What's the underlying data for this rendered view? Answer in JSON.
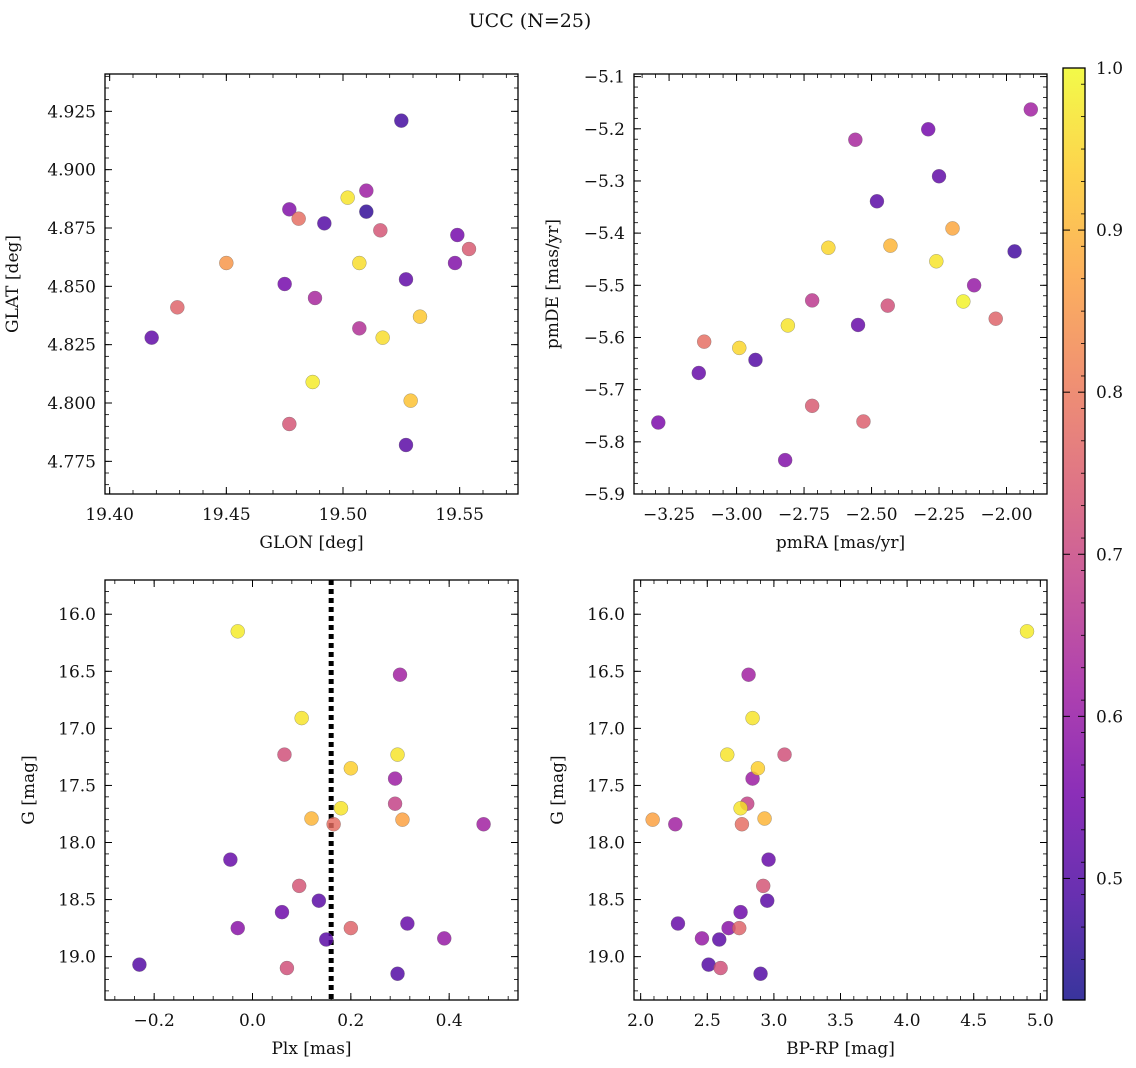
{
  "title": "UCC (N=25)",
  "colorbar": {
    "min": 0.425,
    "max": 1.0,
    "ticks": [
      0.5,
      0.6,
      0.7,
      0.8,
      0.9,
      1.0
    ],
    "tick_labels": [
      "0.5",
      "0.6",
      "0.7",
      "0.8",
      "0.9",
      "1.0"
    ],
    "colormap": [
      "#0d0887",
      "#46039f",
      "#7201a8",
      "#9c179e",
      "#bd3786",
      "#d8576b",
      "#ed7953",
      "#fb9f3a",
      "#fdca26",
      "#f0f921"
    ],
    "marker_opacity": 0.82
  },
  "chart_data": [
    {
      "type": "scatter",
      "name": "position",
      "xlabel": "GLON [deg]",
      "ylabel": "GLAT [deg]",
      "xlim": [
        19.398,
        19.575
      ],
      "ylim": [
        4.761,
        4.941
      ],
      "xticks": [
        19.4,
        19.45,
        19.5,
        19.55
      ],
      "xtick_labels": [
        "19.40",
        "19.45",
        "19.50",
        "19.55"
      ],
      "yticks": [
        4.775,
        4.8,
        4.825,
        4.85,
        4.875,
        4.9,
        4.925
      ],
      "ytick_labels": [
        "4.775",
        "4.800",
        "4.825",
        "4.850",
        "4.875",
        "4.900",
        "4.925"
      ],
      "points": [
        {
          "x": 19.525,
          "y": 4.921,
          "p": 0.48
        },
        {
          "x": 19.502,
          "y": 4.888,
          "p": 0.97
        },
        {
          "x": 19.51,
          "y": 4.891,
          "p": 0.61
        },
        {
          "x": 19.477,
          "y": 4.883,
          "p": 0.57
        },
        {
          "x": 19.51,
          "y": 4.882,
          "p": 0.46
        },
        {
          "x": 19.481,
          "y": 4.879,
          "p": 0.78
        },
        {
          "x": 19.492,
          "y": 4.877,
          "p": 0.5
        },
        {
          "x": 19.516,
          "y": 4.874,
          "p": 0.73
        },
        {
          "x": 19.549,
          "y": 4.872,
          "p": 0.55
        },
        {
          "x": 19.554,
          "y": 4.866,
          "p": 0.74
        },
        {
          "x": 19.45,
          "y": 4.86,
          "p": 0.85
        },
        {
          "x": 19.507,
          "y": 4.86,
          "p": 0.96
        },
        {
          "x": 19.548,
          "y": 4.86,
          "p": 0.57
        },
        {
          "x": 19.527,
          "y": 4.853,
          "p": 0.52
        },
        {
          "x": 19.475,
          "y": 4.851,
          "p": 0.55
        },
        {
          "x": 19.488,
          "y": 4.845,
          "p": 0.63
        },
        {
          "x": 19.429,
          "y": 4.841,
          "p": 0.76
        },
        {
          "x": 19.533,
          "y": 4.837,
          "p": 0.93
        },
        {
          "x": 19.507,
          "y": 4.832,
          "p": 0.65
        },
        {
          "x": 19.517,
          "y": 4.828,
          "p": 0.96
        },
        {
          "x": 19.418,
          "y": 4.828,
          "p": 0.52
        },
        {
          "x": 19.487,
          "y": 4.809,
          "p": 0.98
        },
        {
          "x": 19.529,
          "y": 4.801,
          "p": 0.92
        },
        {
          "x": 19.477,
          "y": 4.791,
          "p": 0.73
        },
        {
          "x": 19.527,
          "y": 4.782,
          "p": 0.51
        }
      ]
    },
    {
      "type": "scatter",
      "name": "proper-motion",
      "xlabel": "pmRA [mas/yr]",
      "ylabel": "pmDE [mas/yr]",
      "xlim": [
        -3.38,
        -1.85
      ],
      "ylim": [
        -5.9,
        -5.095
      ],
      "xticks": [
        -3.25,
        -3.0,
        -2.75,
        -2.5,
        -2.25,
        -2.0
      ],
      "xtick_labels": [
        "−3.25",
        "−3.00",
        "−2.75",
        "−2.50",
        "−2.25",
        "−2.00"
      ],
      "yticks": [
        -5.9,
        -5.8,
        -5.7,
        -5.6,
        -5.5,
        -5.4,
        -5.3,
        -5.2,
        -5.1
      ],
      "ytick_labels": [
        "−5.9",
        "−5.8",
        "−5.7",
        "−5.6",
        "−5.5",
        "−5.4",
        "−5.3",
        "−5.2",
        "−5.1"
      ],
      "points": [
        {
          "x": -1.91,
          "y": -5.163,
          "p": 0.62
        },
        {
          "x": -2.29,
          "y": -5.201,
          "p": 0.55
        },
        {
          "x": -2.56,
          "y": -5.221,
          "p": 0.63
        },
        {
          "x": -2.25,
          "y": -5.291,
          "p": 0.52
        },
        {
          "x": -2.48,
          "y": -5.339,
          "p": 0.51
        },
        {
          "x": -2.2,
          "y": -5.391,
          "p": 0.88
        },
        {
          "x": -2.43,
          "y": -5.424,
          "p": 0.9
        },
        {
          "x": -2.66,
          "y": -5.428,
          "p": 0.95
        },
        {
          "x": -1.97,
          "y": -5.435,
          "p": 0.48
        },
        {
          "x": -2.26,
          "y": -5.454,
          "p": 0.97
        },
        {
          "x": -2.12,
          "y": -5.5,
          "p": 0.6
        },
        {
          "x": -2.72,
          "y": -5.529,
          "p": 0.67
        },
        {
          "x": -2.16,
          "y": -5.531,
          "p": 0.99
        },
        {
          "x": -2.44,
          "y": -5.539,
          "p": 0.72
        },
        {
          "x": -2.04,
          "y": -5.564,
          "p": 0.76
        },
        {
          "x": -2.81,
          "y": -5.577,
          "p": 0.97
        },
        {
          "x": -2.55,
          "y": -5.576,
          "p": 0.53
        },
        {
          "x": -3.12,
          "y": -5.608,
          "p": 0.78
        },
        {
          "x": -2.99,
          "y": -5.62,
          "p": 0.95
        },
        {
          "x": -2.93,
          "y": -5.643,
          "p": 0.5
        },
        {
          "x": -3.14,
          "y": -5.668,
          "p": 0.53
        },
        {
          "x": -2.72,
          "y": -5.731,
          "p": 0.74
        },
        {
          "x": -2.53,
          "y": -5.761,
          "p": 0.75
        },
        {
          "x": -3.29,
          "y": -5.763,
          "p": 0.56
        },
        {
          "x": -2.82,
          "y": -5.835,
          "p": 0.57
        }
      ]
    },
    {
      "type": "scatter",
      "name": "parallax-magnitude",
      "xlabel": "Plx [mas]",
      "ylabel": "G [mag]",
      "xlim": [
        -0.3,
        0.54
      ],
      "ylim": [
        19.38,
        15.7
      ],
      "invert_y": true,
      "vline": {
        "x": 0.16,
        "style": "dotted",
        "color": "#000000"
      },
      "xticks": [
        -0.2,
        0.0,
        0.2,
        0.4
      ],
      "xtick_labels": [
        "−0.2",
        "0.0",
        "0.2",
        "0.4"
      ],
      "yticks": [
        16.0,
        16.5,
        17.0,
        17.5,
        18.0,
        18.5,
        19.0
      ],
      "ytick_labels": [
        "16.0",
        "16.5",
        "17.0",
        "17.5",
        "18.0",
        "18.5",
        "19.0"
      ],
      "points": [
        {
          "x": -0.03,
          "y": 16.15,
          "p": 0.98
        },
        {
          "x": 0.3,
          "y": 16.53,
          "p": 0.62
        },
        {
          "x": 0.1,
          "y": 16.91,
          "p": 0.97
        },
        {
          "x": 0.065,
          "y": 17.23,
          "p": 0.72
        },
        {
          "x": 0.295,
          "y": 17.23,
          "p": 0.97
        },
        {
          "x": 0.2,
          "y": 17.35,
          "p": 0.94
        },
        {
          "x": 0.29,
          "y": 17.44,
          "p": 0.61
        },
        {
          "x": 0.29,
          "y": 17.66,
          "p": 0.69
        },
        {
          "x": 0.18,
          "y": 17.7,
          "p": 0.97
        },
        {
          "x": 0.12,
          "y": 17.79,
          "p": 0.9
        },
        {
          "x": 0.305,
          "y": 17.8,
          "p": 0.87
        },
        {
          "x": 0.165,
          "y": 17.84,
          "p": 0.78
        },
        {
          "x": 0.47,
          "y": 17.84,
          "p": 0.62
        },
        {
          "x": -0.045,
          "y": 18.15,
          "p": 0.53
        },
        {
          "x": 0.095,
          "y": 18.38,
          "p": 0.73
        },
        {
          "x": 0.135,
          "y": 18.51,
          "p": 0.51
        },
        {
          "x": 0.06,
          "y": 18.61,
          "p": 0.54
        },
        {
          "x": 0.315,
          "y": 18.71,
          "p": 0.53
        },
        {
          "x": -0.03,
          "y": 18.75,
          "p": 0.58
        },
        {
          "x": 0.2,
          "y": 18.75,
          "p": 0.76
        },
        {
          "x": 0.15,
          "y": 18.85,
          "p": 0.51
        },
        {
          "x": 0.39,
          "y": 18.84,
          "p": 0.6
        },
        {
          "x": -0.23,
          "y": 19.07,
          "p": 0.5
        },
        {
          "x": 0.07,
          "y": 19.1,
          "p": 0.72
        },
        {
          "x": 0.295,
          "y": 19.15,
          "p": 0.5
        }
      ]
    },
    {
      "type": "scatter",
      "name": "color-magnitude",
      "xlabel": "BP-RP [mag]",
      "ylabel": "G [mag]",
      "xlim": [
        1.95,
        5.05
      ],
      "ylim": [
        19.38,
        15.7
      ],
      "invert_y": true,
      "xticks": [
        2.0,
        2.5,
        3.0,
        3.5,
        4.0,
        4.5,
        5.0
      ],
      "xtick_labels": [
        "2.0",
        "2.5",
        "3.0",
        "3.5",
        "4.0",
        "4.5",
        "5.0"
      ],
      "yticks": [
        16.0,
        16.5,
        17.0,
        17.5,
        18.0,
        18.5,
        19.0
      ],
      "ytick_labels": [
        "16.0",
        "16.5",
        "17.0",
        "17.5",
        "18.0",
        "18.5",
        "19.0"
      ],
      "points": [
        {
          "x": 4.9,
          "y": 16.15,
          "p": 0.98
        },
        {
          "x": 2.81,
          "y": 16.53,
          "p": 0.62
        },
        {
          "x": 2.84,
          "y": 16.91,
          "p": 0.97
        },
        {
          "x": 2.65,
          "y": 17.23,
          "p": 0.97
        },
        {
          "x": 3.08,
          "y": 17.23,
          "p": 0.72
        },
        {
          "x": 2.88,
          "y": 17.35,
          "p": 0.94
        },
        {
          "x": 2.84,
          "y": 17.44,
          "p": 0.61
        },
        {
          "x": 2.8,
          "y": 17.66,
          "p": 0.69
        },
        {
          "x": 2.75,
          "y": 17.7,
          "p": 0.97
        },
        {
          "x": 2.09,
          "y": 17.8,
          "p": 0.87
        },
        {
          "x": 2.93,
          "y": 17.79,
          "p": 0.9
        },
        {
          "x": 2.26,
          "y": 17.84,
          "p": 0.62
        },
        {
          "x": 2.76,
          "y": 17.84,
          "p": 0.78
        },
        {
          "x": 2.96,
          "y": 18.15,
          "p": 0.53
        },
        {
          "x": 2.92,
          "y": 18.38,
          "p": 0.73
        },
        {
          "x": 2.95,
          "y": 18.51,
          "p": 0.51
        },
        {
          "x": 2.75,
          "y": 18.61,
          "p": 0.54
        },
        {
          "x": 2.28,
          "y": 18.71,
          "p": 0.53
        },
        {
          "x": 2.66,
          "y": 18.75,
          "p": 0.58
        },
        {
          "x": 2.74,
          "y": 18.75,
          "p": 0.76
        },
        {
          "x": 2.46,
          "y": 18.84,
          "p": 0.6
        },
        {
          "x": 2.59,
          "y": 18.85,
          "p": 0.51
        },
        {
          "x": 2.51,
          "y": 19.07,
          "p": 0.5
        },
        {
          "x": 2.6,
          "y": 19.1,
          "p": 0.72
        },
        {
          "x": 2.9,
          "y": 19.15,
          "p": 0.5
        }
      ]
    }
  ]
}
